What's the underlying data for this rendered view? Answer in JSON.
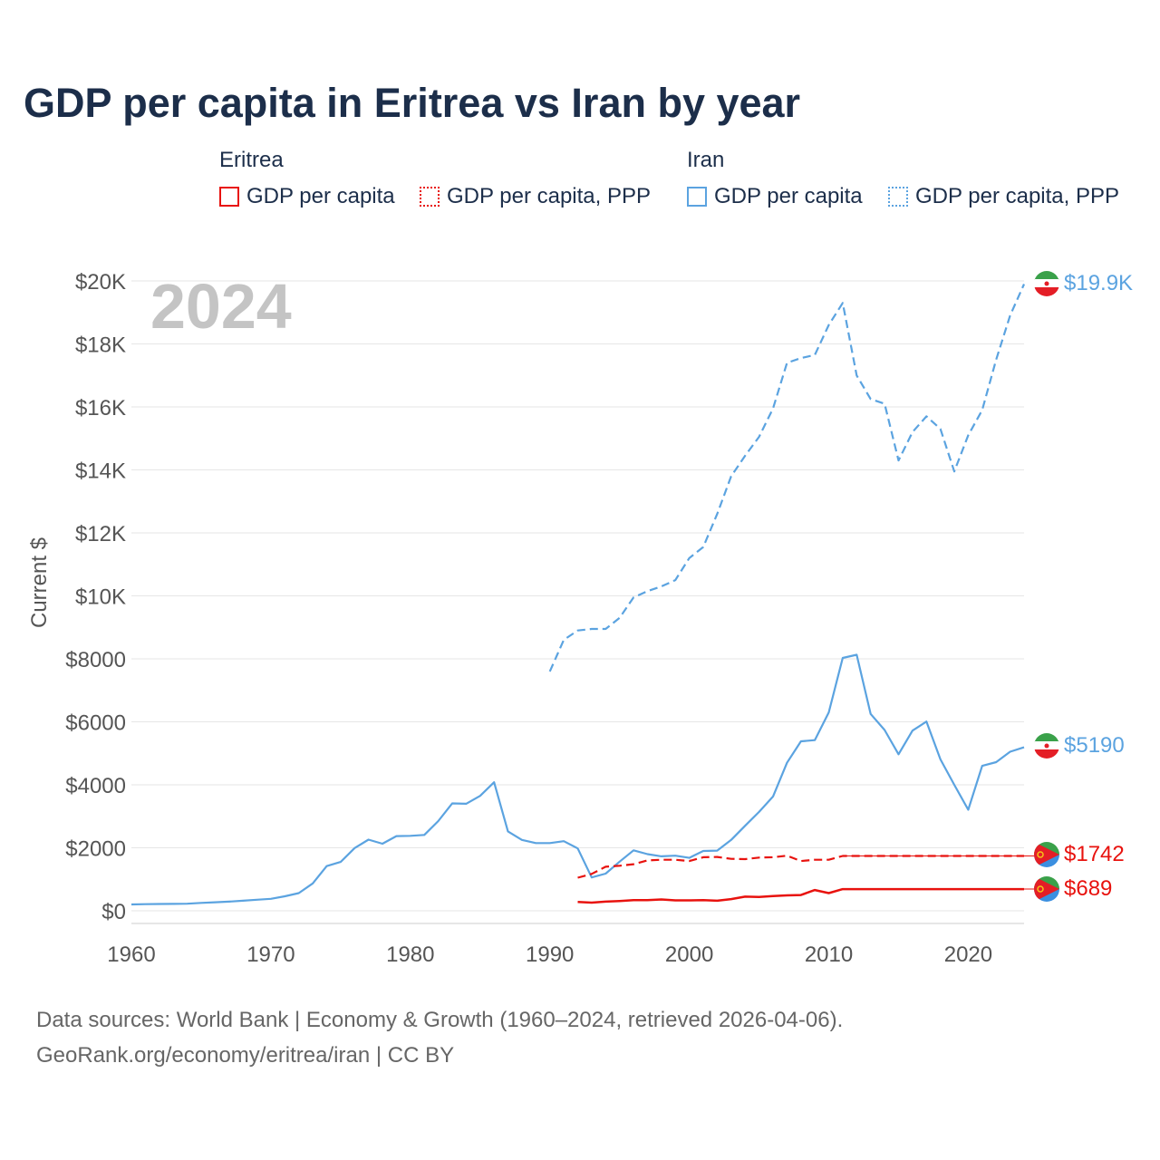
{
  "title": "GDP per capita in Eritrea vs Iran by year",
  "legend": {
    "groups": [
      {
        "name": "Eritrea",
        "color": "#e8120e",
        "items": [
          {
            "label": "GDP per capita",
            "style": "solid"
          },
          {
            "label": "GDP per capita, PPP",
            "style": "dotted"
          }
        ]
      },
      {
        "name": "Iran",
        "color": "#5ba3e0",
        "items": [
          {
            "label": "GDP per capita",
            "style": "solid"
          },
          {
            "label": "GDP per capita, PPP",
            "style": "dotted"
          }
        ]
      }
    ]
  },
  "year_label": "2024",
  "footer": {
    "line1": "Data sources: World Bank | Economy & Growth (1960–2024, retrieved 2026-04-06).",
    "line2": "GeoRank.org/economy/eritrea/iran | CC BY"
  },
  "chart_data": {
    "type": "line",
    "ylabel": "Current $",
    "xlim": [
      1960,
      2024
    ],
    "ylim": [
      0,
      20000
    ],
    "x_ticks": [
      1960,
      1970,
      1980,
      1990,
      2000,
      2010,
      2020
    ],
    "x_tick_labels": [
      "1960",
      "1970",
      "1980",
      "1990",
      "2000",
      "2010",
      "2020"
    ],
    "y_ticks": [
      0,
      2000,
      4000,
      6000,
      8000,
      10000,
      12000,
      14000,
      16000,
      18000,
      20000
    ],
    "y_tick_labels": [
      "$0",
      "$2000",
      "$4000",
      "$6000",
      "$8000",
      "$10K",
      "$12K",
      "$14K",
      "$16K",
      "$18K",
      "$20K"
    ],
    "grid": true,
    "series": [
      {
        "name": "Iran GDP per capita, PPP",
        "country": "Iran",
        "color": "#5ba3e0",
        "dash": "dashed",
        "end_label": "$19.9K",
        "x": [
          1990,
          1991,
          1992,
          1993,
          1994,
          1995,
          1996,
          1997,
          1998,
          1999,
          2000,
          2001,
          2002,
          2003,
          2004,
          2005,
          2006,
          2007,
          2008,
          2009,
          2010,
          2011,
          2012,
          2013,
          2014,
          2015,
          2016,
          2017,
          2018,
          2019,
          2020,
          2021,
          2022,
          2023,
          2024
        ],
        "values": [
          7600,
          8600,
          8900,
          8950,
          8950,
          9300,
          9950,
          10150,
          10300,
          10500,
          11200,
          11550,
          12600,
          13800,
          14450,
          15050,
          15950,
          17400,
          17550,
          17650,
          18600,
          19300,
          17000,
          16250,
          16100,
          14300,
          15200,
          15700,
          15300,
          13950,
          15100,
          15900,
          17500,
          18900,
          19900
        ]
      },
      {
        "name": "Iran GDP per capita",
        "country": "Iran",
        "color": "#5ba3e0",
        "dash": "solid",
        "end_label": "$5190",
        "x": [
          1960,
          1961,
          1962,
          1963,
          1964,
          1965,
          1966,
          1967,
          1968,
          1969,
          1970,
          1971,
          1972,
          1973,
          1974,
          1975,
          1976,
          1977,
          1978,
          1979,
          1980,
          1981,
          1982,
          1983,
          1984,
          1985,
          1986,
          1987,
          1988,
          1989,
          1990,
          1991,
          1992,
          1993,
          1994,
          1995,
          1996,
          1997,
          1998,
          1999,
          2000,
          2001,
          2002,
          2003,
          2004,
          2005,
          2006,
          2007,
          2008,
          2009,
          2010,
          2011,
          2012,
          2013,
          2014,
          2015,
          2016,
          2017,
          2018,
          2019,
          2020,
          2021,
          2022,
          2023,
          2024
        ],
        "values": [
          200,
          210,
          215,
          220,
          225,
          250,
          270,
          290,
          320,
          350,
          380,
          460,
          560,
          870,
          1420,
          1550,
          1990,
          2260,
          2130,
          2370,
          2380,
          2410,
          2850,
          3410,
          3400,
          3650,
          4080,
          2520,
          2250,
          2150,
          2150,
          2210,
          1980,
          1060,
          1180,
          1560,
          1920,
          1800,
          1730,
          1750,
          1680,
          1900,
          1910,
          2250,
          2700,
          3140,
          3630,
          4700,
          5380,
          5420,
          6300,
          8030,
          8130,
          6250,
          5740,
          4970,
          5720,
          6010,
          4810,
          4000,
          3210,
          4600,
          4720,
          5050,
          5190
        ]
      },
      {
        "name": "Eritrea GDP per capita, PPP",
        "country": "Eritrea",
        "color": "#e8120e",
        "dash": "dashed",
        "end_label": "$1742",
        "x": [
          1992,
          1993,
          1994,
          1995,
          1996,
          1997,
          1998,
          1999,
          2000,
          2001,
          2002,
          2003,
          2004,
          2005,
          2006,
          2007,
          2008,
          2009,
          2010,
          2011,
          2024
        ],
        "values": [
          1050,
          1170,
          1400,
          1430,
          1480,
          1600,
          1620,
          1620,
          1580,
          1700,
          1710,
          1650,
          1640,
          1690,
          1700,
          1750,
          1580,
          1620,
          1620,
          1742,
          1742
        ]
      },
      {
        "name": "Eritrea GDP per capita",
        "country": "Eritrea",
        "color": "#e8120e",
        "dash": "solid",
        "end_label": "$689",
        "x": [
          1992,
          1993,
          1994,
          1995,
          1996,
          1997,
          1998,
          1999,
          2000,
          2001,
          2002,
          2003,
          2004,
          2005,
          2006,
          2007,
          2008,
          2009,
          2010,
          2011,
          2024
        ],
        "values": [
          280,
          260,
          290,
          310,
          340,
          340,
          360,
          330,
          330,
          340,
          320,
          370,
          450,
          440,
          470,
          490,
          500,
          660,
          560,
          689,
          689
        ]
      }
    ]
  }
}
